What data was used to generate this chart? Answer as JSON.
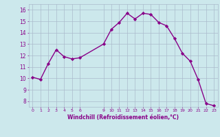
{
  "x": [
    0,
    1,
    2,
    3,
    4,
    5,
    6,
    9,
    10,
    11,
    12,
    13,
    14,
    15,
    16,
    17,
    18,
    19,
    20,
    21,
    22,
    23
  ],
  "y": [
    10.1,
    9.9,
    11.3,
    12.5,
    11.9,
    11.7,
    11.8,
    13.0,
    14.3,
    14.9,
    15.7,
    15.2,
    15.7,
    15.6,
    14.9,
    14.6,
    13.5,
    12.2,
    11.5,
    9.9,
    7.8,
    7.6
  ],
  "xticks": [
    0,
    1,
    2,
    3,
    4,
    5,
    6,
    9,
    10,
    11,
    12,
    13,
    14,
    15,
    16,
    17,
    18,
    19,
    20,
    21,
    22,
    23
  ],
  "yticks": [
    8,
    9,
    10,
    11,
    12,
    13,
    14,
    15,
    16
  ],
  "ylim": [
    7.5,
    16.5
  ],
  "xlim": [
    -0.5,
    23.5
  ],
  "xlabel": "Windchill (Refroidissement éolien,°C)",
  "line_color": "#880088",
  "marker_color": "#880088",
  "bg_color": "#cce8ec",
  "grid_color": "#aabbcc",
  "xlabel_color": "#880088",
  "tick_color": "#880088",
  "marker": "D",
  "markersize": 2.2,
  "linewidth": 1.0
}
